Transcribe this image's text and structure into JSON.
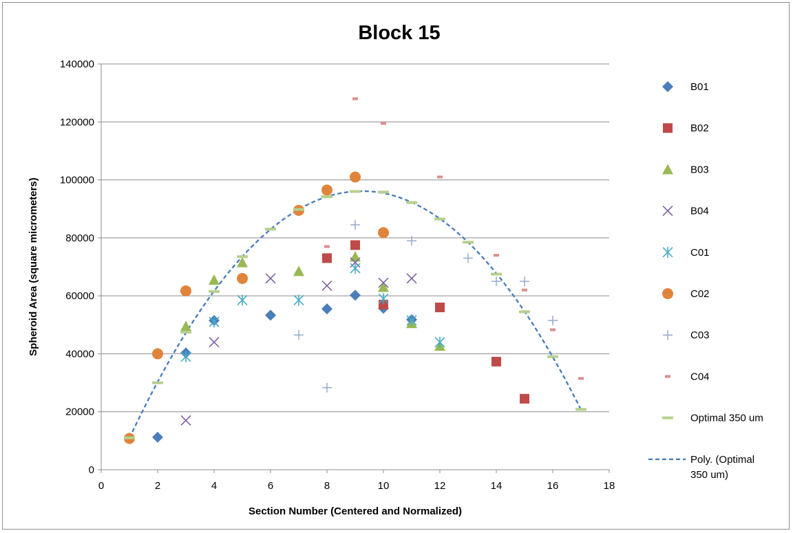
{
  "chart_data": {
    "type": "scatter",
    "title": "Block 15",
    "xlabel": "Section Number (Centered and Normalized)",
    "ylabel": "Spheroid Area (square micrometers)",
    "xlim": [
      0,
      18
    ],
    "ylim": [
      0,
      140000
    ],
    "xticks": [
      0,
      2,
      4,
      6,
      8,
      10,
      12,
      14,
      16,
      18
    ],
    "yticks": [
      0,
      20000,
      40000,
      60000,
      80000,
      100000,
      120000,
      140000
    ],
    "grid": "horizontal",
    "legend_position": "right",
    "series": [
      {
        "name": "B01",
        "marker": "diamond",
        "color": "#4a7ebb",
        "points": [
          [
            2,
            11200
          ],
          [
            3,
            40300
          ],
          [
            4,
            51500
          ],
          [
            6,
            53300
          ],
          [
            8,
            55500
          ],
          [
            9,
            60200
          ],
          [
            10,
            55700
          ],
          [
            11,
            51800
          ]
        ]
      },
      {
        "name": "B02",
        "marker": "square",
        "color": "#be4b48",
        "points": [
          [
            8,
            73000
          ],
          [
            9,
            77500
          ],
          [
            10,
            57000
          ],
          [
            12,
            56000
          ],
          [
            14,
            37300
          ],
          [
            15,
            24500
          ]
        ]
      },
      {
        "name": "B03",
        "marker": "triangle",
        "color": "#98b954",
        "points": [
          [
            3,
            49500
          ],
          [
            4,
            65500
          ],
          [
            5,
            71500
          ],
          [
            7,
            68500
          ],
          [
            9,
            73500
          ],
          [
            10,
            63000
          ],
          [
            11,
            50500
          ],
          [
            12,
            42700
          ]
        ]
      },
      {
        "name": "B04",
        "marker": "x",
        "color": "#7d60a0",
        "points": [
          [
            3,
            17000
          ],
          [
            4,
            44000
          ],
          [
            6,
            66000
          ],
          [
            8,
            63500
          ],
          [
            9,
            71500
          ],
          [
            10,
            64500
          ],
          [
            11,
            66000
          ]
        ]
      },
      {
        "name": "C01",
        "marker": "asterisk",
        "color": "#46aac5",
        "points": [
          [
            3,
            39000
          ],
          [
            4,
            51000
          ],
          [
            5,
            58500
          ],
          [
            7,
            58500
          ],
          [
            9,
            69500
          ],
          [
            10,
            59000
          ],
          [
            11,
            51500
          ],
          [
            12,
            44000
          ]
        ]
      },
      {
        "name": "C02",
        "marker": "circle",
        "color": "#e0843c",
        "points": [
          [
            1,
            10800
          ],
          [
            2,
            40000
          ],
          [
            3,
            61700
          ],
          [
            5,
            66000
          ],
          [
            7,
            89500
          ],
          [
            8,
            96500
          ],
          [
            9,
            101000
          ],
          [
            10,
            81800
          ]
        ]
      },
      {
        "name": "C03",
        "marker": "plus",
        "color": "#8ea5cb",
        "points": [
          [
            7,
            46500
          ],
          [
            8,
            28300
          ],
          [
            9,
            84500
          ],
          [
            11,
            79000
          ],
          [
            13,
            73000
          ],
          [
            14,
            65000
          ],
          [
            15,
            65000
          ],
          [
            16,
            51500
          ]
        ]
      },
      {
        "name": "C04",
        "marker": "dash",
        "color": "#dd8e8d",
        "points": [
          [
            8,
            77000
          ],
          [
            9,
            128000
          ],
          [
            10,
            119500
          ],
          [
            12,
            101000
          ],
          [
            14,
            74000
          ],
          [
            15,
            62000
          ],
          [
            16,
            48300
          ],
          [
            17,
            31500
          ]
        ]
      },
      {
        "name": "Optimal 350 um",
        "marker": "dash-wide",
        "color": "#b6d08e",
        "points": [
          [
            1,
            11000
          ],
          [
            2,
            30000
          ],
          [
            3,
            47500
          ],
          [
            4,
            61500
          ],
          [
            5,
            73500
          ],
          [
            6,
            83000
          ],
          [
            7,
            89800
          ],
          [
            8,
            94200
          ],
          [
            9,
            96000
          ],
          [
            10,
            95800
          ],
          [
            11,
            92200
          ],
          [
            12,
            86500
          ],
          [
            13,
            78500
          ],
          [
            14,
            67500
          ],
          [
            15,
            54500
          ],
          [
            16,
            39000
          ],
          [
            17,
            20800
          ]
        ]
      }
    ],
    "trendline": {
      "name": "Poly. (Optimal 350 um)",
      "legend_lines": [
        "Poly. (Optimal",
        "350 um)"
      ],
      "color": "#4a7ebb",
      "style": "dashed",
      "of_series": "Optimal 350 um",
      "order": 2,
      "x_range": [
        1,
        17
      ]
    }
  }
}
